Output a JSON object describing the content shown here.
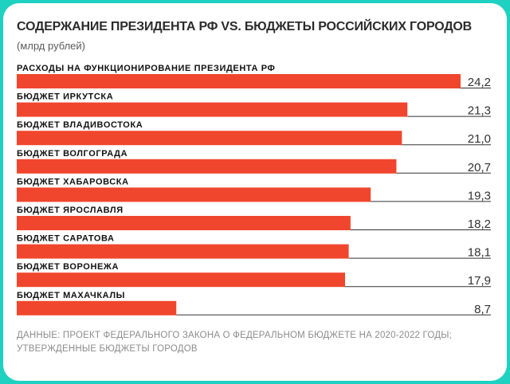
{
  "colors": {
    "background": "#1fd1c1",
    "card": "#ffffff",
    "bar": "#f0462d",
    "value_line": "#333333"
  },
  "header": {
    "title": "СОДЕРЖАНИЕ ПРЕЗИДЕНТА РФ VS. БЮДЖЕТЫ РОССИЙСКИХ ГОРОДОВ",
    "subtitle": "(млрд рублей)"
  },
  "footer": {
    "source": "ДАННЫЕ: ПРОЕКТ ФЕДЕРАЛЬНОГО ЗАКОНА О ФЕДЕРАЛЬНОМ БЮДЖЕТЕ НА 2020-2022 ГОДЫ; УТВЕРЖДЕННЫЕ БЮДЖЕТЫ ГОРОДОВ"
  },
  "chart_data": {
    "type": "bar",
    "orientation": "horizontal",
    "title": "СОДЕРЖАНИЕ ПРЕЗИДЕНТА РФ VS. БЮДЖЕТЫ РОССИЙСКИХ ГОРОДОВ",
    "subtitle": "(млрд рублей)",
    "categories": [
      "РАСХОДЫ НА ФУНКЦИОНИРОВАНИЕ ПРЕЗИДЕНТА РФ",
      "БЮДЖЕТ ИРКУТСКА",
      "БЮДЖЕТ ВЛАДИВОСТОКА",
      "БЮДЖЕТ ВОЛГОГРАДА",
      "БЮДЖЕТ ХАБАРОВСКА",
      "БЮДЖЕТ ЯРОСЛАВЛЯ",
      "БЮДЖЕТ САРАТОВА",
      "БЮДЖЕТ ВОРОНЕЖА",
      "БЮДЖЕТ МАХАЧКАЛЫ"
    ],
    "values": [
      24.2,
      21.3,
      21.0,
      20.7,
      19.3,
      18.2,
      18.1,
      17.9,
      8.7
    ],
    "value_labels": [
      "24,2",
      "21,3",
      "21,0",
      "20,7",
      "19,3",
      "18,2",
      "18,1",
      "17,9",
      "8,7"
    ],
    "xlim": [
      0,
      24.2
    ],
    "grid": false,
    "legend": "none"
  }
}
